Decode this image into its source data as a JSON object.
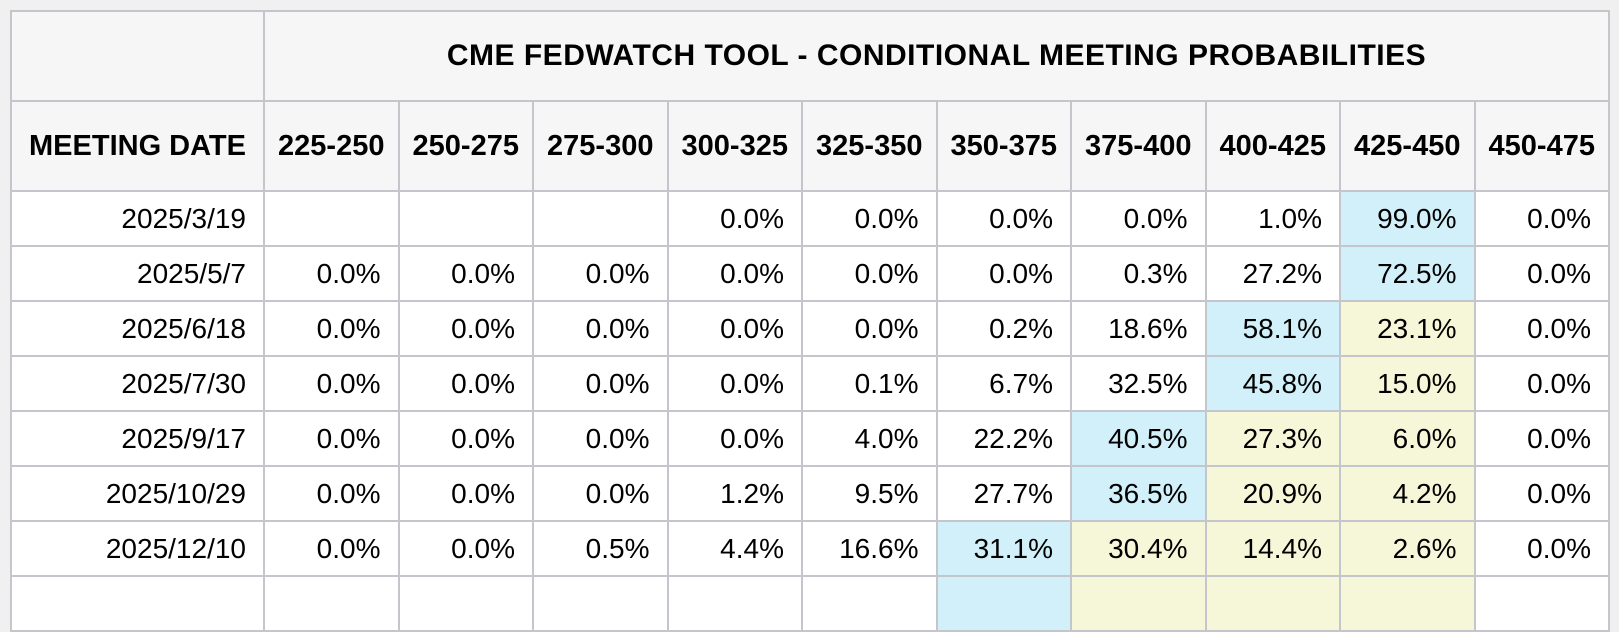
{
  "title": "CME FEDWATCH TOOL - CONDITIONAL MEETING PROBABILITIES",
  "table": {
    "corner_label": "",
    "date_column_header": "MEETING DATE",
    "rate_range_headers": [
      "225-250",
      "250-275",
      "275-300",
      "300-325",
      "325-350",
      "350-375",
      "375-400",
      "400-425",
      "425-450",
      "450-475"
    ],
    "rows": [
      {
        "date": "2025/3/19",
        "values": [
          "",
          "",
          "",
          "0.0%",
          "0.0%",
          "0.0%",
          "0.0%",
          "1.0%",
          "99.0%",
          "0.0%"
        ],
        "highlights": [
          "",
          "",
          "",
          "",
          "",
          "",
          "",
          "",
          "blue",
          ""
        ]
      },
      {
        "date": "2025/5/7",
        "values": [
          "0.0%",
          "0.0%",
          "0.0%",
          "0.0%",
          "0.0%",
          "0.0%",
          "0.3%",
          "27.2%",
          "72.5%",
          "0.0%"
        ],
        "highlights": [
          "",
          "",
          "",
          "",
          "",
          "",
          "",
          "",
          "blue",
          ""
        ]
      },
      {
        "date": "2025/6/18",
        "values": [
          "0.0%",
          "0.0%",
          "0.0%",
          "0.0%",
          "0.0%",
          "0.2%",
          "18.6%",
          "58.1%",
          "23.1%",
          "0.0%"
        ],
        "highlights": [
          "",
          "",
          "",
          "",
          "",
          "",
          "",
          "blue",
          "yellow",
          ""
        ]
      },
      {
        "date": "2025/7/30",
        "values": [
          "0.0%",
          "0.0%",
          "0.0%",
          "0.0%",
          "0.1%",
          "6.7%",
          "32.5%",
          "45.8%",
          "15.0%",
          "0.0%"
        ],
        "highlights": [
          "",
          "",
          "",
          "",
          "",
          "",
          "",
          "blue",
          "yellow",
          ""
        ]
      },
      {
        "date": "2025/9/17",
        "values": [
          "0.0%",
          "0.0%",
          "0.0%",
          "0.0%",
          "4.0%",
          "22.2%",
          "40.5%",
          "27.3%",
          "6.0%",
          "0.0%"
        ],
        "highlights": [
          "",
          "",
          "",
          "",
          "",
          "",
          "blue",
          "yellow",
          "yellow",
          ""
        ]
      },
      {
        "date": "2025/10/29",
        "values": [
          "0.0%",
          "0.0%",
          "0.0%",
          "1.2%",
          "9.5%",
          "27.7%",
          "36.5%",
          "20.9%",
          "4.2%",
          "0.0%"
        ],
        "highlights": [
          "",
          "",
          "",
          "",
          "",
          "",
          "blue",
          "yellow",
          "yellow",
          ""
        ]
      },
      {
        "date": "2025/12/10",
        "values": [
          "0.0%",
          "0.0%",
          "0.5%",
          "4.4%",
          "16.6%",
          "31.1%",
          "30.4%",
          "14.4%",
          "2.6%",
          "0.0%"
        ],
        "highlights": [
          "",
          "",
          "",
          "",
          "",
          "blue",
          "yellow",
          "yellow",
          "yellow",
          ""
        ]
      }
    ],
    "partial_row": {
      "date": "",
      "values": [
        "",
        "",
        "",
        "",
        "",
        "",
        "",
        "",
        "",
        ""
      ],
      "highlights": [
        "",
        "",
        "",
        "",
        "",
        "blue",
        "yellow",
        "yellow",
        "yellow",
        ""
      ]
    }
  },
  "colors": {
    "highlight_blue": "#d2f0f9",
    "highlight_yellow": "#f6f6d9",
    "header_background": "#f6f6f7",
    "border": "#c4c6cc",
    "page_background": "#f0f0f0"
  }
}
